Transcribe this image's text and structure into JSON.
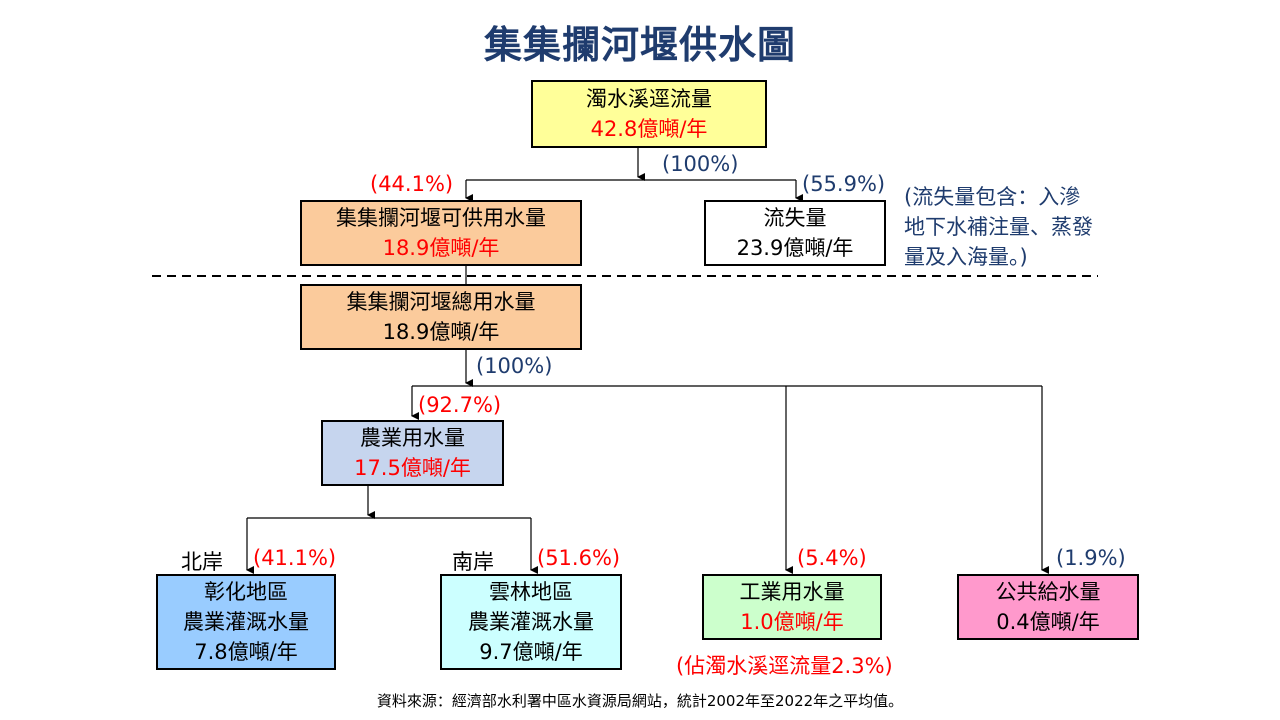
{
  "title": "集集攔河堰供水圖",
  "source_box": {
    "name": "濁水溪逕流量",
    "value": "42.8億噸/年"
  },
  "available_box": {
    "name": "集集攔河堰可供用水量",
    "value": "18.9億噸/年",
    "pct": "(44.1%)"
  },
  "loss_box": {
    "name": "流失量",
    "value": "23.9億噸/年",
    "pct": "(55.9%)"
  },
  "loss_note": [
    "(流失量包含：入滲",
    "地下水補注量、蒸發",
    "量及入海量。)"
  ],
  "top_pct": "(100%)",
  "total_box": {
    "name": "集集攔河堰總用水量",
    "value": "18.9億噸/年"
  },
  "total_pct": "(100%)",
  "agri_box": {
    "name": "農業用水量",
    "value": "17.5億噸/年",
    "pct": "(92.7%)"
  },
  "changhua_box": {
    "region": "北岸",
    "name": "彰化地區",
    "name2": "農業灌溉水量",
    "value": "7.8億噸/年",
    "pct": "(41.1%)"
  },
  "yunlin_box": {
    "region": "南岸",
    "name": "雲林地區",
    "name2": "農業灌溉水量",
    "value": "9.7億噸/年",
    "pct": "(51.6%)"
  },
  "industry_box": {
    "name": "工業用水量",
    "value": "1.0億噸/年",
    "pct": "(5.4%)",
    "note": "(佔濁水溪逕流量2.3%)"
  },
  "public_box": {
    "name": "公共給水量",
    "value": "0.4億噸/年",
    "pct": "(1.9%)"
  },
  "footer": "資料來源：經濟部水利署中區水資源局網站，統計2002年至2022年之平均值。",
  "colors": {
    "yellow": "#ffff99",
    "orange": "#fbcb9c",
    "lavender": "#c6d5ee",
    "blue": "#99ccff",
    "cyan": "#ccffff",
    "green": "#ccffcc",
    "pink": "#ff99cc",
    "navy": "#1f3c6e",
    "red": "#ff0000"
  }
}
